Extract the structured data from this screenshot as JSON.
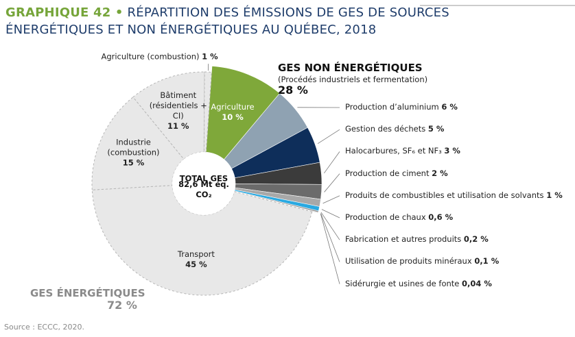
{
  "chart_data": {
    "type": "pie",
    "title_prefix": "GRAPHIQUE 42 •",
    "title": [
      "RÉPARTITION DES ÉMISSIONS DE GES DE SOURCES",
      "ÉNERGÉTIQUES ET NON ÉNERGÉTIQUES AU QUÉBEC, 2018"
    ],
    "center_label": [
      "TOTAL GES",
      "82,6 Mt éq. CO₂"
    ],
    "series": [
      {
        "name": "GES NON ÉNERGÉTIQUES",
        "subtitle": "(Procédés industriels et fermentation)",
        "total": 28,
        "total_label": "28 %",
        "categories": [
          "Agriculture",
          "Production d’aluminium",
          "Gestion des déchets",
          "Halocarbures, SF₆ et NF₃",
          "Production de ciment",
          "Produits de combustibles et utilisation de solvants",
          "Production de chaux",
          "Fabrication et autres produits",
          "Utilisation de produits minéraux",
          "Sidérurgie et usines de fonte"
        ],
        "values": [
          10,
          6,
          5,
          3,
          2,
          1,
          0.6,
          0.2,
          0.1,
          0.04
        ],
        "value_labels": [
          "10 %",
          "6 %",
          "5 %",
          "3 %",
          "2 %",
          "1 %",
          "0,6 %",
          "0,2 %",
          "0,1 %",
          "0,04 %"
        ],
        "colors": [
          "#7fa83a",
          "#8fa2b2",
          "#0e2e5a",
          "#3b3b3b",
          "#6b6b6b",
          "#a8a8a8",
          "#2aa9e1",
          "#8c8c8c",
          "#bcbcbc",
          "#dcdcdc"
        ]
      },
      {
        "name": "GES ÉNERGÉTIQUES",
        "total": 72,
        "total_label": "72 %",
        "categories": [
          "Transport",
          "Industrie (combustion)",
          "Bâtiment (résidentiels + CI)",
          "Agriculture (combustion)"
        ],
        "values": [
          45,
          15,
          11,
          1
        ],
        "value_labels": [
          "45 %",
          "15 %",
          "11 %",
          "1 %"
        ],
        "colors": [
          "#e8e8e8",
          "#e8e8e8",
          "#e8e8e8",
          "#e8e8e8"
        ]
      }
    ],
    "source": "Source : ECCC, 2020."
  }
}
